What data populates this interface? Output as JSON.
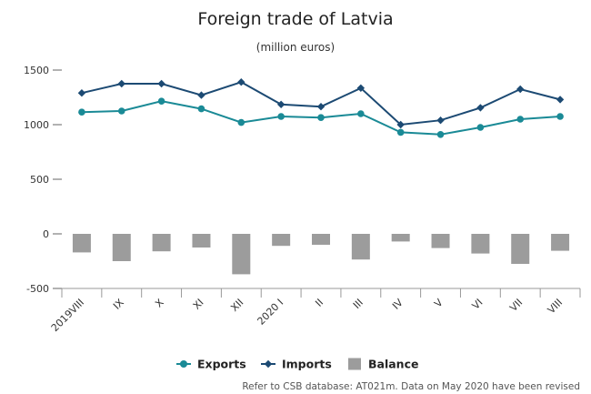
{
  "chart_data": {
    "type": "bar+line",
    "title": "Foreign trade of Latvia",
    "subtitle": "(million euros)",
    "categories": [
      "2019VIII",
      "IX",
      "X",
      "XI",
      "XII",
      "2020 I",
      "II",
      "III",
      "IV",
      "V",
      "VI",
      "VII",
      "VIII"
    ],
    "series": [
      {
        "name": "Exports",
        "type": "line",
        "color": "#1a8a96",
        "marker": "circle",
        "values": [
          1115,
          1125,
          1215,
          1145,
          1020,
          1075,
          1065,
          1100,
          930,
          910,
          975,
          1050,
          1075
        ]
      },
      {
        "name": "Imports",
        "type": "line",
        "color": "#1c4a73",
        "marker": "diamond",
        "values": [
          1290,
          1375,
          1375,
          1270,
          1390,
          1185,
          1165,
          1335,
          1000,
          1040,
          1155,
          1325,
          1230
        ]
      },
      {
        "name": "Balance",
        "type": "bar",
        "color": "#9c9c9c",
        "values": [
          -170,
          -250,
          -160,
          -125,
          -370,
          -110,
          -100,
          -235,
          -70,
          -130,
          -180,
          -275,
          -155
        ]
      }
    ],
    "ylim": [
      -500,
      1500
    ],
    "yticks": [
      -500,
      0,
      500,
      1000,
      1500
    ],
    "grid": false,
    "legend_position": "bottom",
    "note": "Refer to CSB database: AT021m. Data on May 2020 have been revised"
  }
}
